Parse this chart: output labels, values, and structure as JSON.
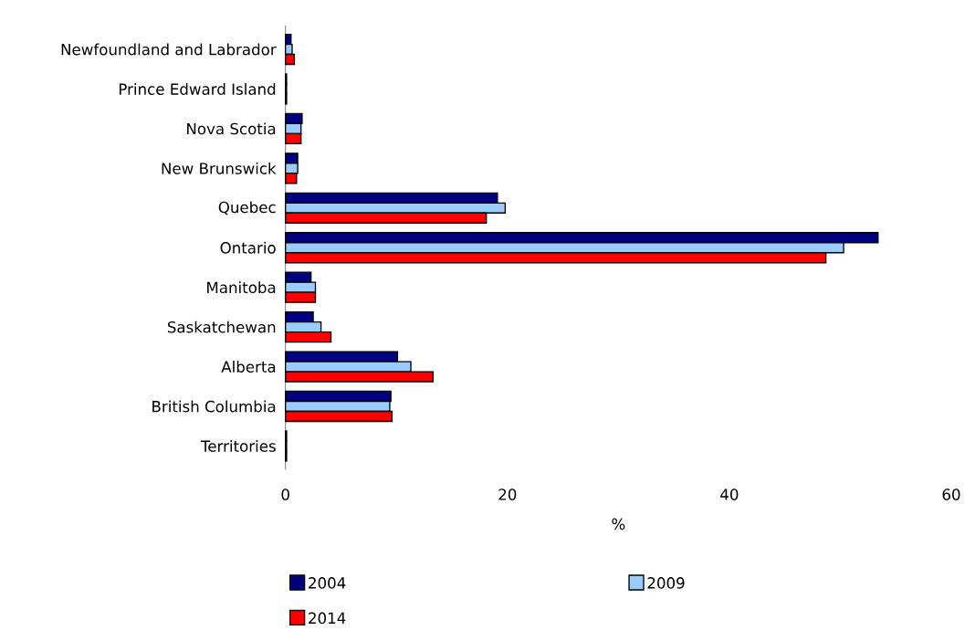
{
  "chart_data": {
    "type": "bar",
    "orientation": "horizontal",
    "xlabel": "%",
    "categories": [
      "Newfoundland and Labrador",
      "Prince Edward Island",
      "Nova Scotia",
      "New Brunswick",
      "Quebec",
      "Ontario",
      "Manitoba",
      "Saskatchewan",
      "Alberta",
      "British Columbia",
      "Territories"
    ],
    "series": [
      {
        "name": "2004",
        "color": "#000080",
        "values": [
          0.5,
          0.1,
          1.5,
          1.1,
          19.1,
          53.4,
          2.3,
          2.5,
          10.1,
          9.5,
          0.1
        ]
      },
      {
        "name": "2009",
        "color": "#99ccff",
        "values": [
          0.6,
          0.1,
          1.4,
          1.1,
          19.8,
          50.3,
          2.7,
          3.2,
          11.3,
          9.4,
          0.1
        ]
      },
      {
        "name": "2014",
        "color": "#ff0000",
        "values": [
          0.8,
          0.1,
          1.4,
          1.0,
          18.1,
          48.7,
          2.7,
          4.1,
          13.3,
          9.6,
          0.1
        ]
      }
    ],
    "xlim": [
      0,
      60
    ],
    "xticks": [
      0,
      20,
      40,
      60
    ],
    "grid": false,
    "legend": "bottom"
  }
}
